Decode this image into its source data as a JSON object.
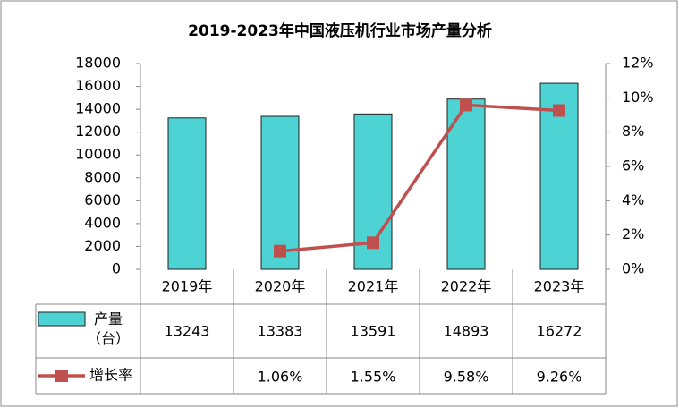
{
  "chart_data": {
    "type": "bar_line_table",
    "title": "2019-2023年中国液压机行业市场产量分析",
    "categories": [
      "2019年",
      "2020年",
      "2021年",
      "2022年",
      "2023年"
    ],
    "series": [
      {
        "name": "产量（台）",
        "type": "bar",
        "color": "#4dd3d3",
        "values": [
          13243,
          13383,
          13591,
          14893,
          16272
        ]
      },
      {
        "name": "增长率",
        "type": "line",
        "axis": "y2",
        "color": "#c0504d",
        "values": [
          null,
          1.06,
          1.55,
          9.58,
          9.26
        ],
        "value_labels": [
          null,
          "1.06%",
          "1.55%",
          "9.58%",
          "9.26%"
        ]
      }
    ],
    "ylim": [
      0,
      18000
    ],
    "yticks": [
      0,
      2000,
      4000,
      6000,
      8000,
      10000,
      12000,
      14000,
      16000,
      18000
    ],
    "y2lim": [
      0,
      12
    ],
    "y2ticks": [
      {
        "value": 0,
        "label": "0%"
      },
      {
        "value": 2,
        "label": "2%"
      },
      {
        "value": 4,
        "label": "4%"
      },
      {
        "value": 6,
        "label": "6%"
      },
      {
        "value": 8,
        "label": "8%"
      },
      {
        "value": 10,
        "label": "10%"
      },
      {
        "value": 12,
        "label": "12%"
      }
    ],
    "grid": false
  }
}
